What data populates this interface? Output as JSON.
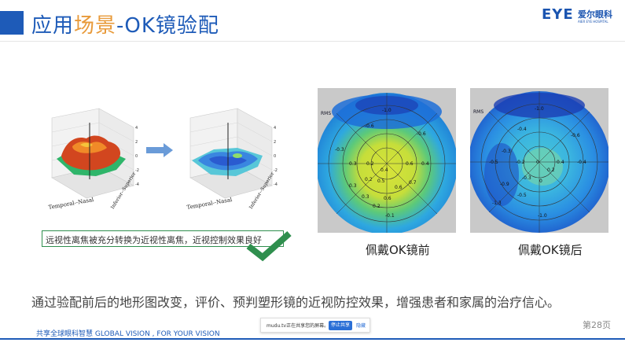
{
  "slide": {
    "title_pre": "应用",
    "title_hl": "场景",
    "title_post": "-OK镜验配",
    "logo_mark": "EYE",
    "logo_cn": "爱尔眼科",
    "logo_en": "AIER EYE HOSPITAL",
    "plots": {
      "x_axis_label": "Temporal--Nasal",
      "y_axis_label": "Inferior--Superior",
      "z_ticks": [
        "4",
        "2",
        "0",
        "-2",
        "-4"
      ]
    },
    "callout": "远视性离焦被充分转换为近视性离焦，近视控制效果良好",
    "maps": {
      "before": {
        "label": "佩戴OK镜前",
        "rms": "RMS",
        "values": [
          "-1.0",
          "-0.6",
          "0.3",
          "0.2",
          "0.4",
          "0.6",
          "0.4",
          "0.3",
          "0.2",
          "0.5",
          "0.6",
          "0.7",
          "0.3",
          "0.6",
          "0.2",
          "-0.1",
          "-0.3",
          "-0.6"
        ]
      },
      "after": {
        "label": "佩戴OK镜后",
        "rms": "RMS",
        "values": [
          "-1.0",
          "-0.4",
          "-0.3",
          "-0.2",
          "0",
          "0.2",
          "0.4",
          "-0.5",
          "-0.3",
          "0",
          "-0.6",
          "-0.4",
          "-0.5",
          "-0.9",
          "-1.3",
          "-1.0"
        ]
      }
    },
    "summary": "通过验配前后的地形图改变，评价、预判塑形镜的近视防控效果，增强患者和家属的治疗信心。",
    "page_number": "第28页",
    "footer": "共享全球眼科智慧 GLOBAL VISION , FOR YOUR VISION"
  },
  "share_bar": {
    "message": "mudu.tv正在共享您的屏幕。",
    "stop_label": "停止共享",
    "hide_label": "隐藏"
  },
  "colors": {
    "brand": "#1e5bb8",
    "accent": "#e89a3a",
    "check": "#2f8f4e"
  }
}
